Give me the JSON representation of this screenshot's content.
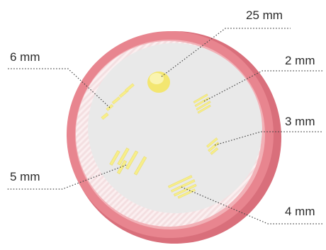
{
  "labels": {
    "mm25": "25 mm",
    "mm2": "2 mm",
    "mm3": "3 mm",
    "mm4": "4 mm",
    "mm5": "5 mm",
    "mm6": "6 mm"
  },
  "colors": {
    "rim": "#e8858f",
    "rim_dark": "#d96f7b",
    "rim_light": "#f2b0b6",
    "floor": "#e9e9e9",
    "wall_inner": "#f5e6e7",
    "feature": "#f7ee8a",
    "feature_core": "#f5ea60",
    "leader": "#444444"
  }
}
